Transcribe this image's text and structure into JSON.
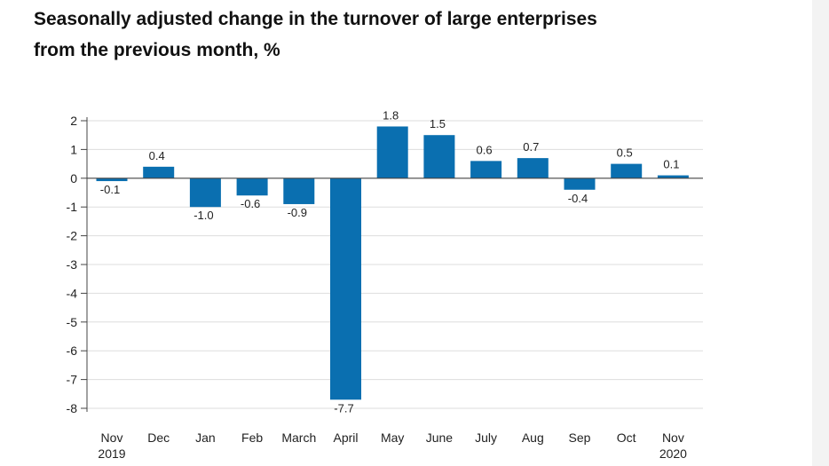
{
  "title_line1": "Seasonally adjusted change in the turnover of large enterprises",
  "title_line2": "from the previous month, %",
  "chart_data": {
    "type": "bar",
    "categories": [
      "Nov",
      "Dec",
      "Jan",
      "Feb",
      "March",
      "April",
      "May",
      "June",
      "July",
      "Aug",
      "Sep",
      "Oct",
      "Nov"
    ],
    "category_sublabels": [
      "2019",
      "",
      "",
      "",
      "",
      "",
      "",
      "",
      "",
      "",
      "",
      "",
      "2020"
    ],
    "values": [
      -0.1,
      0.4,
      -1.0,
      -0.6,
      -0.9,
      -7.7,
      1.8,
      1.5,
      0.6,
      0.7,
      -0.4,
      0.5,
      0.1
    ],
    "data_labels": [
      "-0.1",
      "0.4",
      "-1.0",
      "-0.6",
      "-0.9",
      "-7.7",
      "1.8",
      "1.5",
      "0.6",
      "0.7",
      "-0.4",
      "0.5",
      "0.1"
    ],
    "yticks": [
      2,
      1,
      0,
      -1,
      -2,
      -3,
      -4,
      -5,
      -6,
      -7,
      -8
    ],
    "ylim": [
      -8,
      2
    ],
    "grid": true,
    "bar_color": "#0a6fb0",
    "grid_color": "#dddddd",
    "axis_color": "#444444"
  }
}
